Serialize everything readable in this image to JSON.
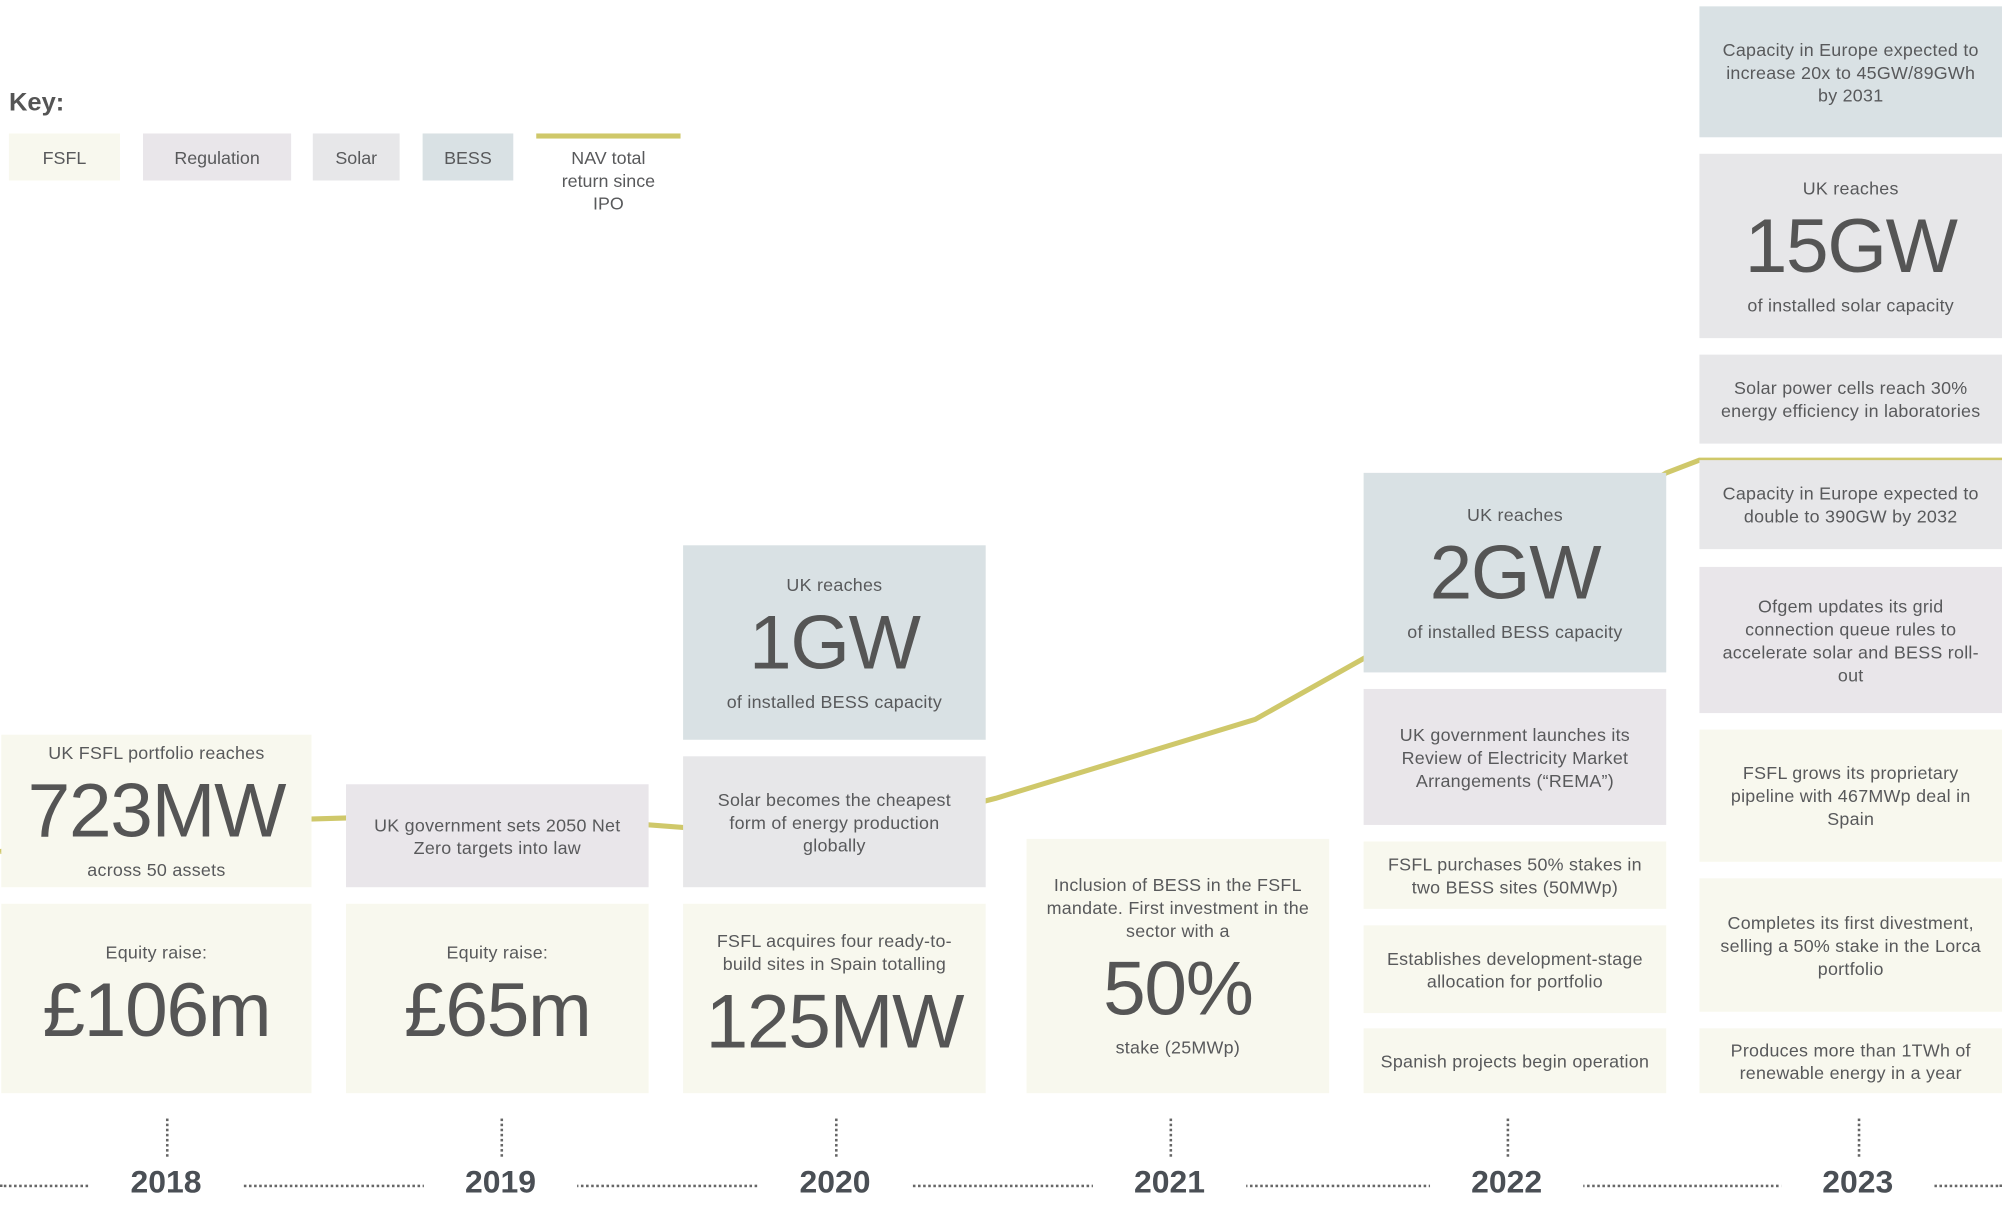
{
  "key": {
    "title": "Key:",
    "items": [
      {
        "label": "FSFL",
        "color": "#f8f8ee"
      },
      {
        "label": "Regulation",
        "color": "#e9e6ea"
      },
      {
        "label": "Solar",
        "color": "#e7e7e9"
      },
      {
        "label": "BESS",
        "color": "#d9e1e4"
      }
    ],
    "line_label": "NAV total return since IPO",
    "line_color": "#cfc86a"
  },
  "columns": [
    {
      "year": "2018",
      "boxes": [
        {
          "color": "#f8f8ee",
          "top": "UK FSFL portfolio reaches",
          "big": "723MW",
          "bottom": "across 50 assets"
        },
        {
          "color": "#f8f8ee",
          "top": "Equity raise:",
          "big": "£106m"
        }
      ]
    },
    {
      "year": "2019",
      "boxes": [
        {
          "color": "#e9e6ea",
          "top": "UK government sets 2050 Net Zero targets into law"
        },
        {
          "color": "#f8f8ee",
          "top": "Equity raise:",
          "big": "£65m"
        }
      ]
    },
    {
      "year": "2020",
      "boxes": [
        {
          "color": "#d9e1e4",
          "top": "UK reaches",
          "big": "1GW",
          "bottom": "of installed BESS capacity"
        },
        {
          "color": "#e7e7e9",
          "top": "Solar becomes the cheapest form of energy production globally"
        },
        {
          "color": "#f8f8ee",
          "top": "FSFL acquires four ready-to-build sites in Spain totalling",
          "big": "125MW"
        }
      ]
    },
    {
      "year": "2021",
      "boxes": [
        {
          "color": "#f8f8ee",
          "top": "Inclusion of BESS in the FSFL mandate. First investment in the sector with a",
          "big": "50%",
          "bottom": "stake (25MWp)"
        }
      ]
    },
    {
      "year": "2022",
      "boxes": [
        {
          "color": "#d9e1e4",
          "top": "UK reaches",
          "big": "2GW",
          "bottom": "of installed BESS capacity"
        },
        {
          "color": "#e9e6ea",
          "top": "UK government launches its Review of Electricity Market Arrangements (“REMA”)"
        },
        {
          "color": "#f8f8ee",
          "top": "FSFL purchases 50% stakes in two BESS sites (50MWp)"
        },
        {
          "color": "#f8f8ee",
          "top": "Establishes development-stage allocation for portfolio"
        },
        {
          "color": "#f8f8ee",
          "top": "Spanish projects begin operation"
        }
      ]
    },
    {
      "year": "2023",
      "boxes": [
        {
          "color": "#d9e1e4",
          "top": "Capacity in Europe expected to increase 20x to 45GW/89GWh by 2031"
        },
        {
          "color": "#e7e7e9",
          "top": "UK reaches",
          "big": "15GW",
          "bottom": "of installed solar capacity"
        },
        {
          "color": "#e7e7e9",
          "top": "Solar power cells reach 30% energy efficiency in laboratories"
        },
        {
          "color": "#e7e7e9",
          "top": "Capacity in Europe expected to double to 390GW by 2032"
        },
        {
          "color": "#e9e6ea",
          "top": "Ofgem updates its grid connection queue rules to accelerate solar and BESS roll-out"
        },
        {
          "color": "#f8f8ee",
          "top": "FSFL grows its proprietary pipeline with 467MWp deal in Spain"
        },
        {
          "color": "#f8f8ee",
          "top": "Completes its first divestment, selling a 50% stake in the Lorca portfolio"
        },
        {
          "color": "#f8f8ee",
          "top": "Produces more than 1TWh of renewable energy in a year"
        }
      ]
    }
  ]
}
